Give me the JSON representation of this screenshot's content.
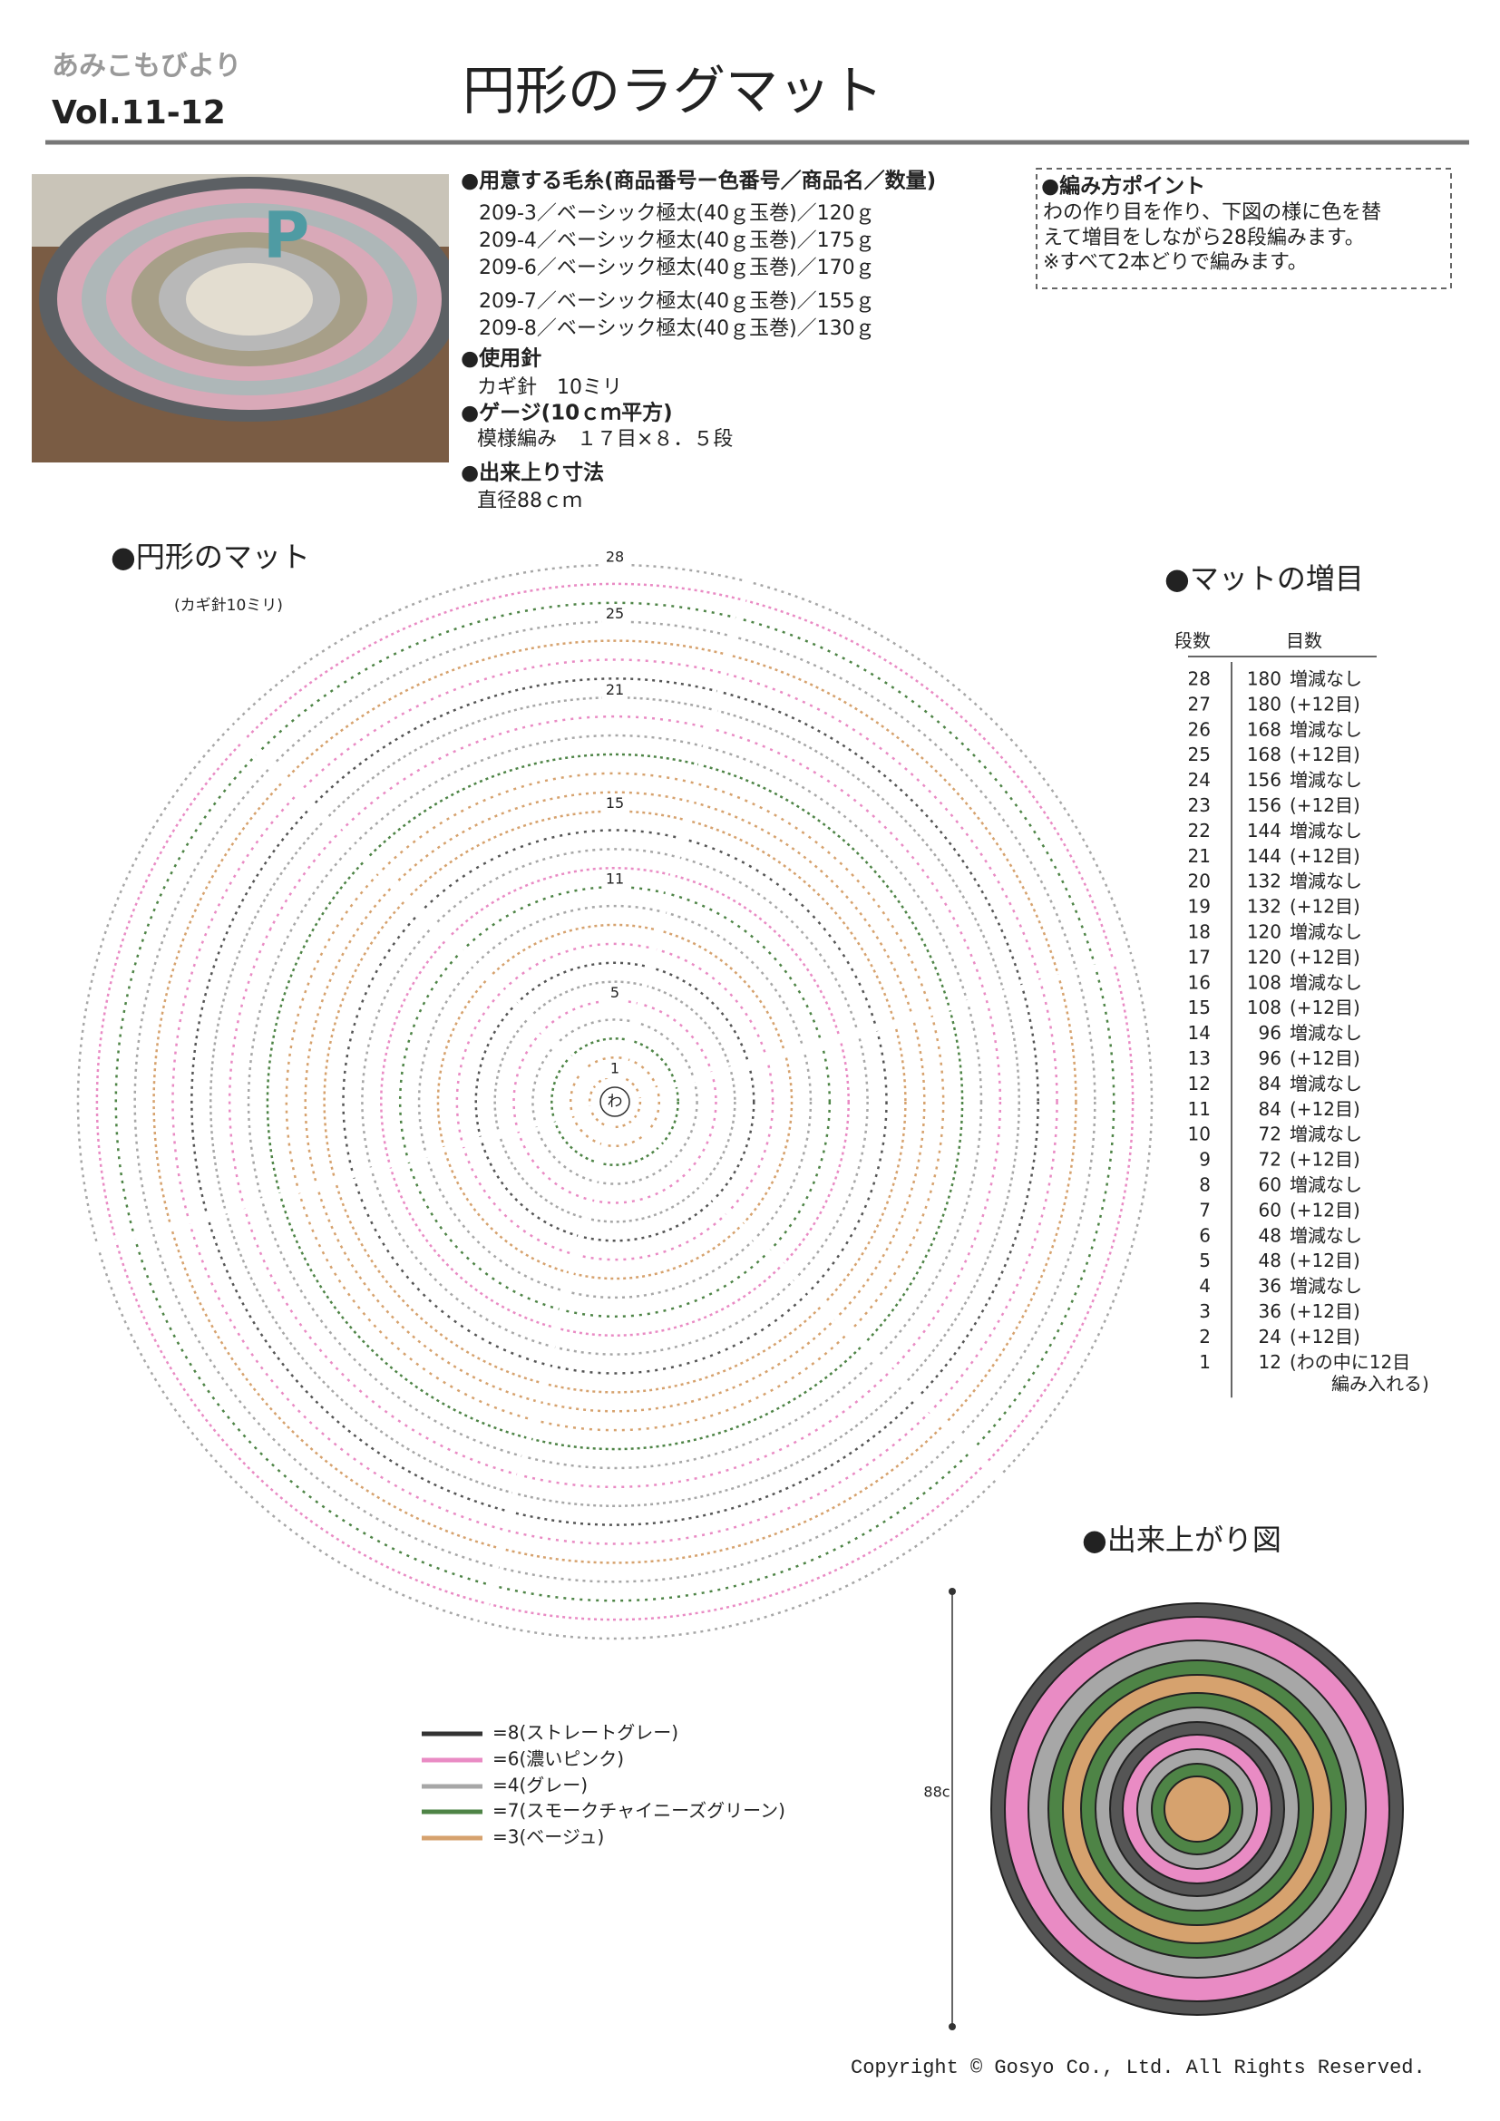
{
  "header": {
    "brand": "あみこもびより",
    "volume": "Vol.11-12",
    "title": "円形のラグマット"
  },
  "materials": {
    "heading": "●用意する毛糸(商品番号ー色番号／商品名／数量)",
    "yarns": [
      "209-3／ベーシック極太(40ｇ玉巻)／120ｇ",
      "209-4／ベーシック極太(40ｇ玉巻)／175ｇ",
      "209-6／ベーシック極太(40ｇ玉巻)／170ｇ",
      "209-7／ベーシック極太(40ｇ玉巻)／155ｇ",
      "209-8／ベーシック極太(40ｇ玉巻)／130ｇ"
    ],
    "needle_heading": "●使用針",
    "needle": "カギ針　10ミリ",
    "gauge_heading": "●ゲージ(10ｃｍ平方)",
    "gauge": "模様編み　１７目×８．５段",
    "size_heading": "●出来上り寸法",
    "size": "直径88ｃｍ"
  },
  "points": {
    "heading": "●編み方ポイント",
    "lines": [
      "わの作り目を作り、下図の様に色を替",
      "えて増目をしながら28段編みます。",
      "※すべて2本どりで編みます。"
    ]
  },
  "diagram": {
    "heading": "●円形のマット",
    "subtitle": "(カギ針10ミリ)",
    "center": "わ",
    "row_labels": [
      1,
      5,
      11,
      15,
      21,
      25,
      28
    ]
  },
  "increase_table": {
    "heading": "●マットの増目",
    "columns": [
      "段数",
      "目数"
    ],
    "rows": [
      [
        28,
        180,
        "増減なし"
      ],
      [
        27,
        180,
        "(+12目)"
      ],
      [
        26,
        168,
        "増減なし"
      ],
      [
        25,
        168,
        "(+12目)"
      ],
      [
        24,
        156,
        "増減なし"
      ],
      [
        23,
        156,
        "(+12目)"
      ],
      [
        22,
        144,
        "増減なし"
      ],
      [
        21,
        144,
        "(+12目)"
      ],
      [
        20,
        132,
        "増減なし"
      ],
      [
        19,
        132,
        "(+12目)"
      ],
      [
        18,
        120,
        "増減なし"
      ],
      [
        17,
        120,
        "(+12目)"
      ],
      [
        16,
        108,
        "増減なし"
      ],
      [
        15,
        108,
        "(+12目)"
      ],
      [
        14,
        96,
        "増減なし"
      ],
      [
        13,
        96,
        "(+12目)"
      ],
      [
        12,
        84,
        "増減なし"
      ],
      [
        11,
        84,
        "(+12目)"
      ],
      [
        10,
        72,
        "増減なし"
      ],
      [
        9,
        72,
        "(+12目)"
      ],
      [
        8,
        60,
        "増減なし"
      ],
      [
        7,
        60,
        "(+12目)"
      ],
      [
        6,
        48,
        "増減なし"
      ],
      [
        5,
        48,
        "(+12目)"
      ],
      [
        4,
        36,
        "増減なし"
      ],
      [
        3,
        36,
        "(+12目)"
      ],
      [
        2,
        24,
        "(+12目)"
      ],
      [
        1,
        12,
        "(わの中に12目",
        "編み入れる)"
      ]
    ]
  },
  "finished": {
    "heading": "●出来上がり図",
    "size": "88c"
  },
  "legend": [
    "=8(ストレートグレー)",
    "=6(濃いピンク)",
    "=4(グレー)",
    "=7(スモークチャイニーズグリーン)",
    "=3(ベージュ)"
  ],
  "copyright": "Copyright © Gosyo Co., Ltd. All Rights Reserved."
}
